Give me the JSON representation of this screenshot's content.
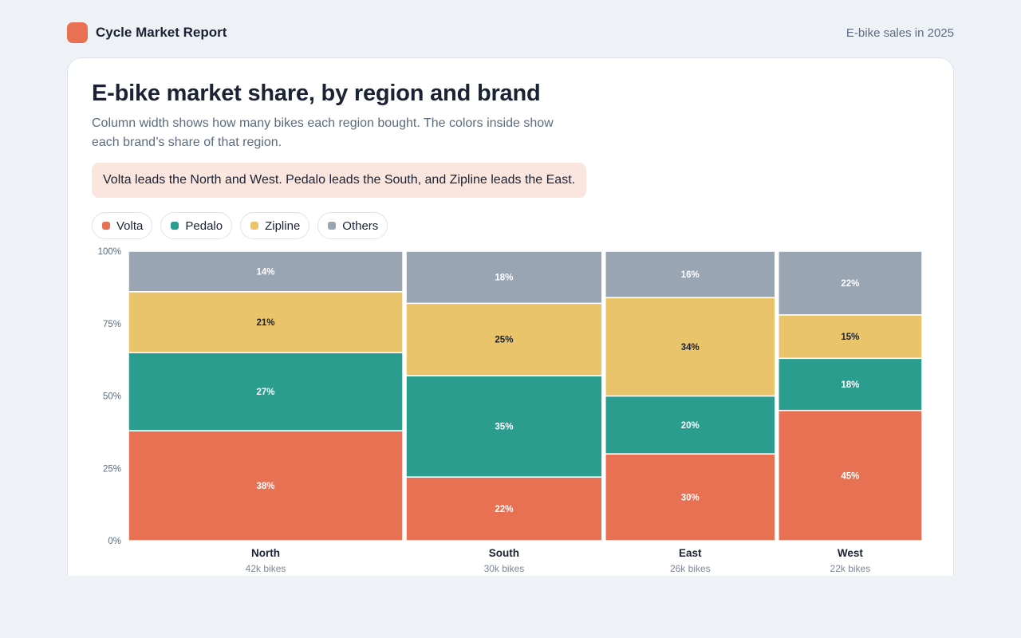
{
  "header": {
    "app_title": "Cycle Market Report",
    "context": "E-bike sales in 2025",
    "brand_color": "#e87053"
  },
  "card": {
    "title": "E-bike market share, by region and brand",
    "subtitle": "Column width shows how many bikes each region bought. The colors inside show each brand’s share of that region.",
    "callout": "Volta leads the North and West. Pedalo leads the South, and Zipline leads the East."
  },
  "legend": [
    {
      "label": "Volta",
      "color": "#e87053"
    },
    {
      "label": "Pedalo",
      "color": "#2a9d8f"
    },
    {
      "label": "Zipline",
      "color": "#e9c46a"
    },
    {
      "label": "Others",
      "color": "#9aa5b4"
    }
  ],
  "chart_data": {
    "type": "bar",
    "subtype": "marimekko",
    "categories": [
      "North",
      "South",
      "East",
      "West"
    ],
    "category_sublabels": [
      "42k bikes",
      "30k bikes",
      "26k bikes",
      "22k bikes"
    ],
    "category_totals": [
      42,
      30,
      26,
      22
    ],
    "ylim": [
      0,
      100
    ],
    "y_ticks": [
      "0%",
      "25%",
      "50%",
      "75%",
      "100%"
    ],
    "series": [
      {
        "name": "Volta",
        "color": "#e87053",
        "label_color": "#ffffff",
        "values": [
          38,
          22,
          30,
          45
        ]
      },
      {
        "name": "Pedalo",
        "color": "#2a9d8f",
        "label_color": "#ffffff",
        "values": [
          27,
          35,
          20,
          18
        ]
      },
      {
        "name": "Zipline",
        "color": "#e9c46a",
        "label_color": "#1a2233",
        "values": [
          21,
          25,
          34,
          15
        ]
      },
      {
        "name": "Others",
        "color": "#9aa5b4",
        "label_color": "#ffffff",
        "values": [
          14,
          18,
          16,
          22
        ]
      }
    ]
  }
}
